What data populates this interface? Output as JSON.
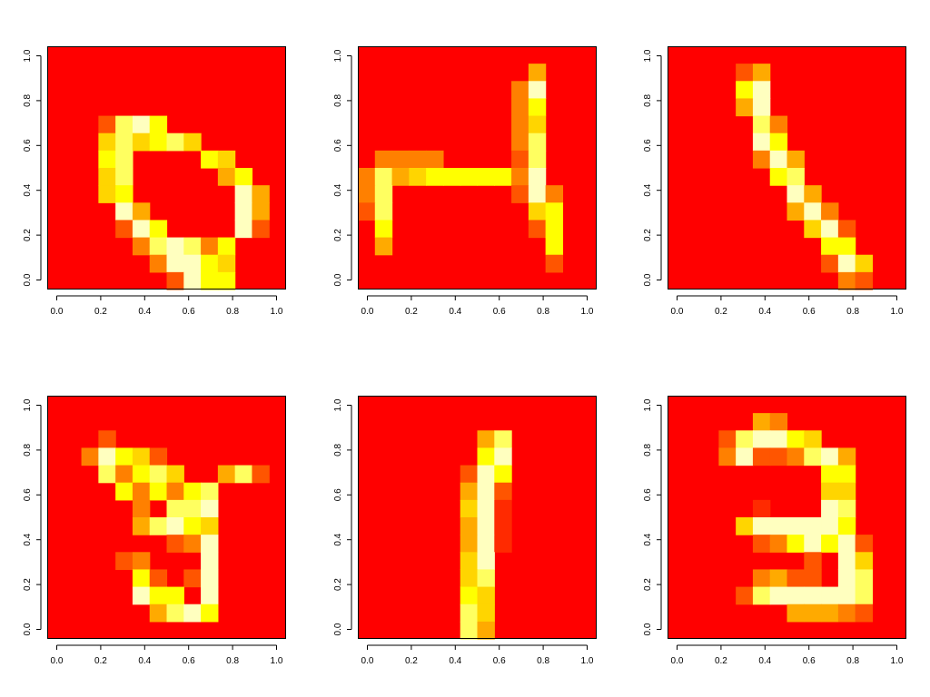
{
  "colors": {
    "background": "#ffffff",
    "palette": [
      "#FF0000",
      "#FF2A00",
      "#FF5500",
      "#FF8000",
      "#FFAA00",
      "#FFD500",
      "#FFFF00",
      "#FFFF60",
      "#FFFFBF"
    ],
    "palette_name": "heat.colors"
  },
  "chart_data": [
    {
      "type": "heatmap",
      "grid": [
        14,
        14
      ],
      "xlim": [
        0,
        1
      ],
      "ylim": [
        0,
        1
      ],
      "x_ticks": [
        "0.0",
        "0.2",
        "0.4",
        "0.6",
        "0.8",
        "1.0"
      ],
      "y_ticks": [
        "0.0",
        "0.2",
        "0.4",
        "0.6",
        "0.8",
        "1.0"
      ],
      "cells": [
        [
          4,
          3,
          2
        ],
        [
          4,
          4,
          7
        ],
        [
          4,
          5,
          8
        ],
        [
          4,
          6,
          6
        ],
        [
          5,
          3,
          5
        ],
        [
          5,
          4,
          7
        ],
        [
          5,
          5,
          5
        ],
        [
          5,
          6,
          6
        ],
        [
          5,
          7,
          7
        ],
        [
          5,
          8,
          5
        ],
        [
          6,
          3,
          6
        ],
        [
          6,
          4,
          7
        ],
        [
          6,
          9,
          6
        ],
        [
          6,
          10,
          5
        ],
        [
          7,
          3,
          5
        ],
        [
          7,
          4,
          7
        ],
        [
          7,
          10,
          4
        ],
        [
          7,
          11,
          6
        ],
        [
          8,
          3,
          5
        ],
        [
          8,
          4,
          6
        ],
        [
          8,
          11,
          8
        ],
        [
          8,
          12,
          4
        ],
        [
          9,
          4,
          8
        ],
        [
          9,
          5,
          4
        ],
        [
          9,
          11,
          8
        ],
        [
          9,
          12,
          4
        ],
        [
          10,
          4,
          2
        ],
        [
          10,
          5,
          8
        ],
        [
          10,
          6,
          6
        ],
        [
          10,
          11,
          8
        ],
        [
          10,
          12,
          2
        ],
        [
          11,
          5,
          3
        ],
        [
          11,
          6,
          7
        ],
        [
          11,
          7,
          8
        ],
        [
          11,
          8,
          7
        ],
        [
          11,
          9,
          3
        ],
        [
          11,
          10,
          6
        ],
        [
          12,
          6,
          3
        ],
        [
          12,
          7,
          8
        ],
        [
          12,
          8,
          8
        ],
        [
          12,
          9,
          6
        ],
        [
          12,
          10,
          5
        ],
        [
          13,
          7,
          2
        ],
        [
          13,
          8,
          8
        ],
        [
          13,
          9,
          6
        ],
        [
          13,
          10,
          6
        ]
      ]
    },
    {
      "type": "heatmap",
      "grid": [
        14,
        14
      ],
      "xlim": [
        0,
        1
      ],
      "ylim": [
        0,
        1
      ],
      "x_ticks": [
        "0.0",
        "0.2",
        "0.4",
        "0.6",
        "0.8",
        "1.0"
      ],
      "y_ticks": [
        "0.0",
        "0.2",
        "0.4",
        "0.6",
        "0.8",
        "1.0"
      ],
      "cells": [
        [
          1,
          10,
          4
        ],
        [
          2,
          9,
          3
        ],
        [
          2,
          10,
          8
        ],
        [
          3,
          9,
          3
        ],
        [
          3,
          10,
          6
        ],
        [
          4,
          9,
          3
        ],
        [
          4,
          10,
          5
        ],
        [
          5,
          9,
          3
        ],
        [
          5,
          10,
          7
        ],
        [
          6,
          1,
          3
        ],
        [
          6,
          2,
          3
        ],
        [
          6,
          3,
          3
        ],
        [
          6,
          4,
          3
        ],
        [
          6,
          9,
          2
        ],
        [
          6,
          10,
          7
        ],
        [
          7,
          0,
          3
        ],
        [
          7,
          1,
          7
        ],
        [
          7,
          2,
          4
        ],
        [
          7,
          3,
          5
        ],
        [
          7,
          4,
          6
        ],
        [
          7,
          5,
          6
        ],
        [
          7,
          6,
          6
        ],
        [
          7,
          7,
          6
        ],
        [
          7,
          8,
          6
        ],
        [
          7,
          9,
          3
        ],
        [
          7,
          10,
          8
        ],
        [
          8,
          0,
          3
        ],
        [
          8,
          1,
          7
        ],
        [
          8,
          9,
          2
        ],
        [
          8,
          10,
          8
        ],
        [
          8,
          11,
          3
        ],
        [
          9,
          0,
          2
        ],
        [
          9,
          1,
          7
        ],
        [
          9,
          10,
          5
        ],
        [
          9,
          11,
          6
        ],
        [
          10,
          1,
          6
        ],
        [
          10,
          10,
          2
        ],
        [
          10,
          11,
          6
        ],
        [
          11,
          1,
          4
        ],
        [
          11,
          11,
          6
        ],
        [
          12,
          11,
          2
        ]
      ]
    },
    {
      "type": "heatmap",
      "grid": [
        14,
        14
      ],
      "xlim": [
        0,
        1
      ],
      "ylim": [
        0,
        1
      ],
      "x_ticks": [
        "0.0",
        "0.2",
        "0.4",
        "0.6",
        "0.8",
        "1.0"
      ],
      "y_ticks": [
        "0.0",
        "0.2",
        "0.4",
        "0.6",
        "0.8",
        "1.0"
      ],
      "cells": [
        [
          1,
          4,
          2
        ],
        [
          1,
          5,
          4
        ],
        [
          2,
          4,
          6
        ],
        [
          2,
          5,
          8
        ],
        [
          3,
          4,
          4
        ],
        [
          3,
          5,
          8
        ],
        [
          4,
          5,
          7
        ],
        [
          4,
          6,
          3
        ],
        [
          5,
          5,
          8
        ],
        [
          5,
          6,
          6
        ],
        [
          6,
          5,
          3
        ],
        [
          6,
          6,
          8
        ],
        [
          6,
          7,
          4
        ],
        [
          7,
          6,
          6
        ],
        [
          7,
          7,
          7
        ],
        [
          8,
          7,
          8
        ],
        [
          8,
          8,
          4
        ],
        [
          9,
          7,
          4
        ],
        [
          9,
          8,
          8
        ],
        [
          9,
          9,
          3
        ],
        [
          10,
          8,
          5
        ],
        [
          10,
          9,
          8
        ],
        [
          10,
          10,
          2
        ],
        [
          11,
          9,
          6
        ],
        [
          11,
          10,
          6
        ],
        [
          12,
          9,
          2
        ],
        [
          12,
          10,
          8
        ],
        [
          12,
          11,
          5
        ],
        [
          13,
          10,
          3
        ],
        [
          13,
          11,
          2
        ]
      ]
    },
    {
      "type": "heatmap",
      "grid": [
        14,
        14
      ],
      "xlim": [
        0,
        1
      ],
      "ylim": [
        0,
        1
      ],
      "x_ticks": [
        "0.0",
        "0.2",
        "0.4",
        "0.6",
        "0.8",
        "1.0"
      ],
      "y_ticks": [
        "0.0",
        "0.2",
        "0.4",
        "0.6",
        "0.8",
        "1.0"
      ],
      "cells": [
        [
          2,
          3,
          2
        ],
        [
          3,
          2,
          3
        ],
        [
          3,
          3,
          8
        ],
        [
          3,
          4,
          6
        ],
        [
          3,
          5,
          5
        ],
        [
          3,
          6,
          2
        ],
        [
          4,
          3,
          7
        ],
        [
          4,
          4,
          3
        ],
        [
          4,
          5,
          6
        ],
        [
          4,
          6,
          7
        ],
        [
          4,
          7,
          5
        ],
        [
          4,
          10,
          4
        ],
        [
          4,
          11,
          7
        ],
        [
          4,
          12,
          2
        ],
        [
          5,
          4,
          6
        ],
        [
          5,
          5,
          3
        ],
        [
          5,
          6,
          6
        ],
        [
          5,
          7,
          3
        ],
        [
          5,
          8,
          6
        ],
        [
          5,
          9,
          7
        ],
        [
          6,
          5,
          3
        ],
        [
          6,
          7,
          7
        ],
        [
          6,
          8,
          7
        ],
        [
          6,
          9,
          8
        ],
        [
          7,
          5,
          4
        ],
        [
          7,
          6,
          7
        ],
        [
          7,
          7,
          8
        ],
        [
          7,
          8,
          6
        ],
        [
          7,
          9,
          5
        ],
        [
          8,
          7,
          2
        ],
        [
          8,
          8,
          3
        ],
        [
          8,
          9,
          8
        ],
        [
          9,
          4,
          2
        ],
        [
          9,
          5,
          3
        ],
        [
          9,
          9,
          8
        ],
        [
          10,
          5,
          6
        ],
        [
          10,
          6,
          2
        ],
        [
          10,
          8,
          2
        ],
        [
          10,
          9,
          8
        ],
        [
          11,
          5,
          8
        ],
        [
          11,
          6,
          6
        ],
        [
          11,
          7,
          6
        ],
        [
          11,
          9,
          8
        ],
        [
          12,
          6,
          4
        ],
        [
          12,
          7,
          7
        ],
        [
          12,
          8,
          8
        ],
        [
          12,
          9,
          6
        ]
      ]
    },
    {
      "type": "heatmap",
      "grid": [
        14,
        14
      ],
      "xlim": [
        0,
        1
      ],
      "ylim": [
        0,
        1
      ],
      "x_ticks": [
        "0.0",
        "0.2",
        "0.4",
        "0.6",
        "0.8",
        "1.0"
      ],
      "y_ticks": [
        "0.0",
        "0.2",
        "0.4",
        "0.6",
        "0.8",
        "1.0"
      ],
      "cells": [
        [
          2,
          7,
          4
        ],
        [
          2,
          8,
          7
        ],
        [
          3,
          7,
          6
        ],
        [
          3,
          8,
          8
        ],
        [
          4,
          6,
          2
        ],
        [
          4,
          7,
          8
        ],
        [
          4,
          8,
          6
        ],
        [
          5,
          6,
          4
        ],
        [
          5,
          7,
          8
        ],
        [
          5,
          8,
          2
        ],
        [
          6,
          6,
          5
        ],
        [
          6,
          7,
          8
        ],
        [
          6,
          8,
          1
        ],
        [
          7,
          6,
          4
        ],
        [
          7,
          7,
          8
        ],
        [
          7,
          8,
          1
        ],
        [
          8,
          6,
          4
        ],
        [
          8,
          7,
          8
        ],
        [
          8,
          8,
          1
        ],
        [
          9,
          6,
          5
        ],
        [
          9,
          7,
          8
        ],
        [
          10,
          6,
          5
        ],
        [
          10,
          7,
          7
        ],
        [
          11,
          6,
          6
        ],
        [
          11,
          7,
          5
        ],
        [
          12,
          6,
          7
        ],
        [
          12,
          7,
          5
        ],
        [
          13,
          6,
          7
        ],
        [
          13,
          7,
          4
        ]
      ]
    },
    {
      "type": "heatmap",
      "grid": [
        14,
        14
      ],
      "xlim": [
        0,
        1
      ],
      "ylim": [
        0,
        1
      ],
      "x_ticks": [
        "0.0",
        "0.2",
        "0.4",
        "0.6",
        "0.8",
        "1.0"
      ],
      "y_ticks": [
        "0.0",
        "0.2",
        "0.4",
        "0.6",
        "0.8",
        "1.0"
      ],
      "cells": [
        [
          1,
          5,
          4
        ],
        [
          1,
          6,
          3
        ],
        [
          2,
          3,
          2
        ],
        [
          2,
          4,
          7
        ],
        [
          2,
          5,
          8
        ],
        [
          2,
          6,
          8
        ],
        [
          2,
          7,
          6
        ],
        [
          2,
          8,
          5
        ],
        [
          3,
          3,
          3
        ],
        [
          3,
          4,
          8
        ],
        [
          3,
          5,
          2
        ],
        [
          3,
          6,
          2
        ],
        [
          3,
          7,
          3
        ],
        [
          3,
          8,
          7
        ],
        [
          3,
          9,
          8
        ],
        [
          3,
          10,
          4
        ],
        [
          4,
          9,
          6
        ],
        [
          4,
          10,
          6
        ],
        [
          5,
          9,
          5
        ],
        [
          5,
          10,
          5
        ],
        [
          6,
          5,
          1
        ],
        [
          6,
          9,
          8
        ],
        [
          6,
          10,
          7
        ],
        [
          7,
          4,
          5
        ],
        [
          7,
          5,
          8
        ],
        [
          7,
          6,
          8
        ],
        [
          7,
          7,
          8
        ],
        [
          7,
          8,
          8
        ],
        [
          7,
          9,
          8
        ],
        [
          7,
          10,
          6
        ],
        [
          8,
          5,
          2
        ],
        [
          8,
          6,
          3
        ],
        [
          8,
          7,
          6
        ],
        [
          8,
          8,
          8
        ],
        [
          8,
          9,
          6
        ],
        [
          8,
          10,
          8
        ],
        [
          8,
          11,
          2
        ],
        [
          9,
          8,
          2
        ],
        [
          9,
          10,
          8
        ],
        [
          9,
          11,
          5
        ],
        [
          10,
          5,
          3
        ],
        [
          10,
          6,
          4
        ],
        [
          10,
          7,
          2
        ],
        [
          10,
          8,
          2
        ],
        [
          10,
          10,
          8
        ],
        [
          10,
          11,
          7
        ],
        [
          11,
          4,
          2
        ],
        [
          11,
          5,
          7
        ],
        [
          11,
          6,
          8
        ],
        [
          11,
          7,
          8
        ],
        [
          11,
          8,
          8
        ],
        [
          11,
          9,
          8
        ],
        [
          11,
          10,
          8
        ],
        [
          11,
          11,
          7
        ],
        [
          12,
          7,
          4
        ],
        [
          12,
          8,
          4
        ],
        [
          12,
          9,
          4
        ],
        [
          12,
          10,
          3
        ],
        [
          12,
          11,
          2
        ]
      ]
    }
  ]
}
